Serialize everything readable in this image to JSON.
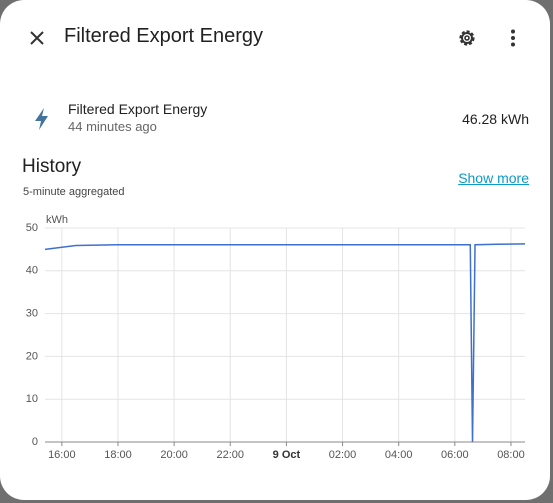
{
  "header": {
    "title": "Filtered Export Energy"
  },
  "entity": {
    "name": "Filtered Export Energy",
    "last_changed": "44 minutes ago",
    "state": "46.28 kWh"
  },
  "history": {
    "title": "History",
    "subtitle": "5-minute aggregated",
    "link": "Show more"
  },
  "chart_data": {
    "type": "line",
    "y_label": "kWh",
    "x": [
      15.4,
      16.5,
      18,
      30.55,
      30.63,
      30.72,
      31.5,
      32.5
    ],
    "series": [
      {
        "color": "#3f6fd1",
        "values": [
          45,
          45.9,
          46.1,
          46.1,
          0,
          46.1,
          46.2,
          46.3
        ]
      }
    ],
    "xlim": [
      15.4,
      32.5
    ],
    "xticks": [
      {
        "value": 16,
        "label": "16:00"
      },
      {
        "value": 18,
        "label": "18:00"
      },
      {
        "value": 20,
        "label": "20:00"
      },
      {
        "value": 22,
        "label": "22:00"
      },
      {
        "value": 24,
        "label": "9 Oct"
      },
      {
        "value": 26,
        "label": "02:00"
      },
      {
        "value": 28,
        "label": "04:00"
      },
      {
        "value": 30,
        "label": "06:00"
      },
      {
        "value": 32,
        "label": "08:00"
      }
    ],
    "ylim": [
      0,
      50
    ],
    "yticks": [
      0,
      10,
      20,
      30,
      40,
      50
    ],
    "grid": true
  }
}
